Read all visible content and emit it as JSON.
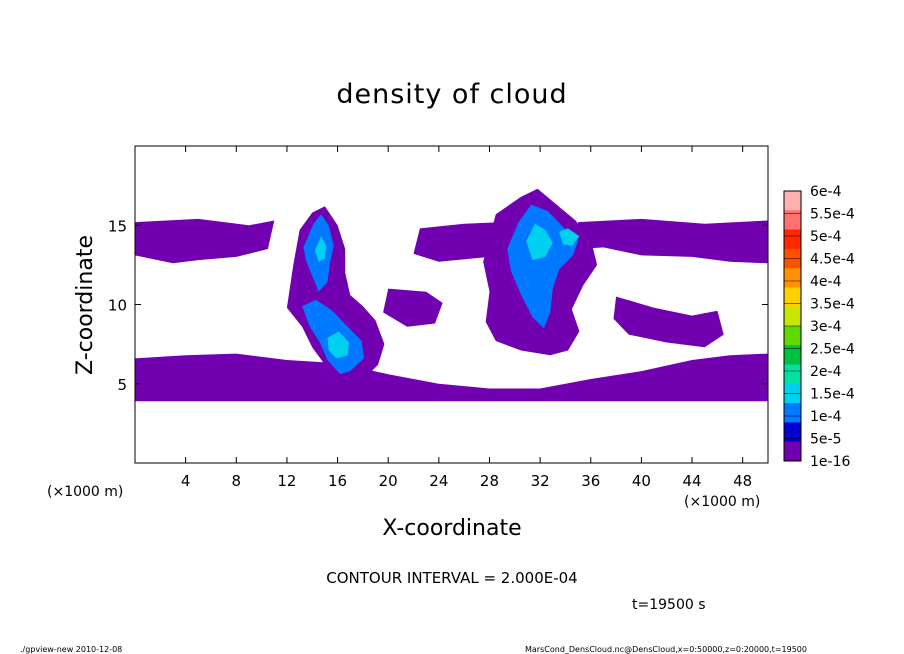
{
  "chart_data": {
    "type": "heatmap",
    "title": "density of cloud",
    "xlabel": "X-coordinate",
    "ylabel": "Z-coordinate",
    "x_unit_label": "(×1000 m)",
    "x_unit_label_right": "(×1000 m)",
    "xlim": [
      0,
      50
    ],
    "ylim": [
      0,
      20
    ],
    "x_ticks": [
      4,
      8,
      12,
      16,
      20,
      24,
      28,
      32,
      36,
      40,
      44,
      48
    ],
    "y_ticks": [
      5,
      10,
      15
    ],
    "grid": false,
    "contour_interval_text": "CONTOUR INTERVAL = 2.000E-04",
    "time_text": "t=19500 s",
    "colorbar": {
      "labels": [
        "6e-4",
        "5.5e-4",
        "5e-4",
        "4.5e-4",
        "4e-4",
        "3.5e-4",
        "3e-4",
        "2.5e-4",
        "2e-4",
        "1.5e-4",
        "1e-4",
        "5e-5",
        "1e-16"
      ],
      "colors": [
        "#ffb0b0",
        "#ff7070",
        "#ff2800",
        "#ff5000",
        "#ff9000",
        "#ffd000",
        "#c8e600",
        "#60d800",
        "#00c040",
        "#00e0a0",
        "#00d0f0",
        "#0078ff",
        "#0000d0",
        "#7000b0"
      ]
    },
    "regions": [
      {
        "name": "upper-band-west",
        "level": 0,
        "polygon": [
          [
            0,
            15.2
          ],
          [
            5,
            15.4
          ],
          [
            9,
            15
          ],
          [
            11,
            15.3
          ],
          [
            10.5,
            13.5
          ],
          [
            8,
            13
          ],
          [
            5,
            12.8
          ],
          [
            3,
            12.6
          ],
          [
            0,
            13.1
          ]
        ]
      },
      {
        "name": "upper-band-mid",
        "level": 0,
        "polygon": [
          [
            22.5,
            14.8
          ],
          [
            26,
            15.1
          ],
          [
            29,
            15.2
          ],
          [
            30,
            14
          ],
          [
            28,
            13
          ],
          [
            24,
            12.7
          ],
          [
            22,
            13.2
          ]
        ]
      },
      {
        "name": "upper-band-east",
        "level": 0,
        "polygon": [
          [
            35,
            15.2
          ],
          [
            40,
            15.4
          ],
          [
            45,
            15.1
          ],
          [
            50,
            15.3
          ],
          [
            50,
            12.6
          ],
          [
            47,
            12.7
          ],
          [
            44,
            13
          ],
          [
            40,
            13.1
          ],
          [
            37,
            13.6
          ],
          [
            35,
            13.5
          ]
        ]
      },
      {
        "name": "lower-band",
        "level": 0,
        "polygon": [
          [
            0,
            6.6
          ],
          [
            4,
            6.8
          ],
          [
            8,
            6.9
          ],
          [
            12,
            6.5
          ],
          [
            16,
            6.3
          ],
          [
            20,
            5.6
          ],
          [
            24,
            5
          ],
          [
            28,
            4.7
          ],
          [
            32,
            4.7
          ],
          [
            36,
            5.3
          ],
          [
            40,
            5.8
          ],
          [
            44,
            6.5
          ],
          [
            47,
            6.8
          ],
          [
            50,
            6.9
          ],
          [
            50,
            3.9
          ],
          [
            0,
            3.9
          ]
        ]
      },
      {
        "name": "west-cloud-column",
        "level": 0,
        "polygon": [
          [
            12,
            9.8
          ],
          [
            12.5,
            12.5
          ],
          [
            13,
            14.7
          ],
          [
            14,
            15.8
          ],
          [
            15,
            16.2
          ],
          [
            16,
            15
          ],
          [
            16.6,
            13.5
          ],
          [
            16.6,
            12
          ],
          [
            17,
            10.6
          ],
          [
            18,
            9.9
          ],
          [
            19,
            9
          ],
          [
            19.7,
            7.5
          ],
          [
            19.2,
            6.2
          ],
          [
            18.2,
            5.4
          ],
          [
            16.5,
            5.3
          ],
          [
            15,
            6.2
          ],
          [
            14,
            7.3
          ],
          [
            13.2,
            8.6
          ]
        ]
      },
      {
        "name": "east-cloud-column",
        "level": 0,
        "polygon": [
          [
            27.5,
            12.7
          ],
          [
            28.5,
            15.7
          ],
          [
            30.5,
            16.8
          ],
          [
            31.8,
            17.3
          ],
          [
            33,
            16.5
          ],
          [
            34.8,
            15.3
          ],
          [
            36,
            14.1
          ],
          [
            36.5,
            12.5
          ],
          [
            35.4,
            11.2
          ],
          [
            34.5,
            9.7
          ],
          [
            35.1,
            8.3
          ],
          [
            34.2,
            7.1
          ],
          [
            32.8,
            6.8
          ],
          [
            30.5,
            7.1
          ],
          [
            28.5,
            7.7
          ],
          [
            27.7,
            8.9
          ],
          [
            28,
            10.8
          ]
        ]
      },
      {
        "name": "east-mid-cloud",
        "level": 0,
        "polygon": [
          [
            38,
            10.5
          ],
          [
            41,
            9.8
          ],
          [
            44,
            9.3
          ],
          [
            46,
            9.6
          ],
          [
            46.5,
            8.1
          ],
          [
            45,
            7.3
          ],
          [
            42,
            7.6
          ],
          [
            39,
            8.1
          ],
          [
            37.8,
            9.1
          ]
        ]
      },
      {
        "name": "west-mid-cloud",
        "level": 0,
        "polygon": [
          [
            20,
            11
          ],
          [
            23,
            10.8
          ],
          [
            24.3,
            10.1
          ],
          [
            23.7,
            8.8
          ],
          [
            21.5,
            8.6
          ],
          [
            19.6,
            9.5
          ]
        ]
      },
      {
        "name": "west-core-upper",
        "level": 1,
        "polygon": [
          [
            13.3,
            13.6
          ],
          [
            14.1,
            15.1
          ],
          [
            14.7,
            15.7
          ],
          [
            15.3,
            15
          ],
          [
            15.7,
            13.7
          ],
          [
            15.4,
            12.6
          ],
          [
            15.2,
            11.4
          ],
          [
            14.5,
            10.8
          ],
          [
            14,
            11.8
          ],
          [
            13.5,
            12.8
          ]
        ]
      },
      {
        "name": "west-core-lower",
        "level": 1,
        "polygon": [
          [
            13.2,
            9.9
          ],
          [
            14.3,
            10.3
          ],
          [
            15.6,
            9.6
          ],
          [
            16.8,
            8.6
          ],
          [
            17.9,
            7.7
          ],
          [
            18.1,
            6.6
          ],
          [
            17,
            5.8
          ],
          [
            16.2,
            5.6
          ],
          [
            15.2,
            6.5
          ],
          [
            14.6,
            7.6
          ],
          [
            13.8,
            8.6
          ]
        ]
      },
      {
        "name": "east-core",
        "level": 1,
        "polygon": [
          [
            29.4,
            13.5
          ],
          [
            30.3,
            15.2
          ],
          [
            31.3,
            16.3
          ],
          [
            32.6,
            15.9
          ],
          [
            33.8,
            14.9
          ],
          [
            35,
            14
          ],
          [
            34.6,
            13.1
          ],
          [
            33.5,
            12.2
          ],
          [
            33,
            11
          ],
          [
            32.8,
            9.5
          ],
          [
            32.3,
            8.5
          ],
          [
            31.4,
            9.2
          ],
          [
            30.5,
            10.6
          ],
          [
            29.7,
            12.1
          ]
        ]
      },
      {
        "name": "west-core-hi-1",
        "level": 2,
        "polygon": [
          [
            14.2,
            13.4
          ],
          [
            14.7,
            14.3
          ],
          [
            15.1,
            13.7
          ],
          [
            15,
            12.9
          ],
          [
            14.5,
            12.7
          ]
        ]
      },
      {
        "name": "west-core-hi-2",
        "level": 2,
        "polygon": [
          [
            15.2,
            7.9
          ],
          [
            16.1,
            8.3
          ],
          [
            16.9,
            7.6
          ],
          [
            16.8,
            6.8
          ],
          [
            15.9,
            6.6
          ],
          [
            15.3,
            7.1
          ]
        ]
      },
      {
        "name": "east-core-hi-1",
        "level": 2,
        "polygon": [
          [
            30.9,
            14
          ],
          [
            31.6,
            15.1
          ],
          [
            32.4,
            14.7
          ],
          [
            33,
            13.9
          ],
          [
            32.4,
            13
          ],
          [
            31.4,
            12.8
          ]
        ]
      },
      {
        "name": "east-core-hi-2",
        "level": 2,
        "polygon": [
          [
            33.5,
            14.6
          ],
          [
            34.2,
            14.8
          ],
          [
            35.1,
            14.3
          ],
          [
            34.5,
            13.7
          ],
          [
            33.8,
            13.8
          ]
        ]
      }
    ]
  },
  "footer": {
    "left": "./gpview-new   2010-12-08",
    "right": "MarsCond_DensCloud.nc@DensCloud,x=0:50000,z=0:20000,t=19500"
  }
}
